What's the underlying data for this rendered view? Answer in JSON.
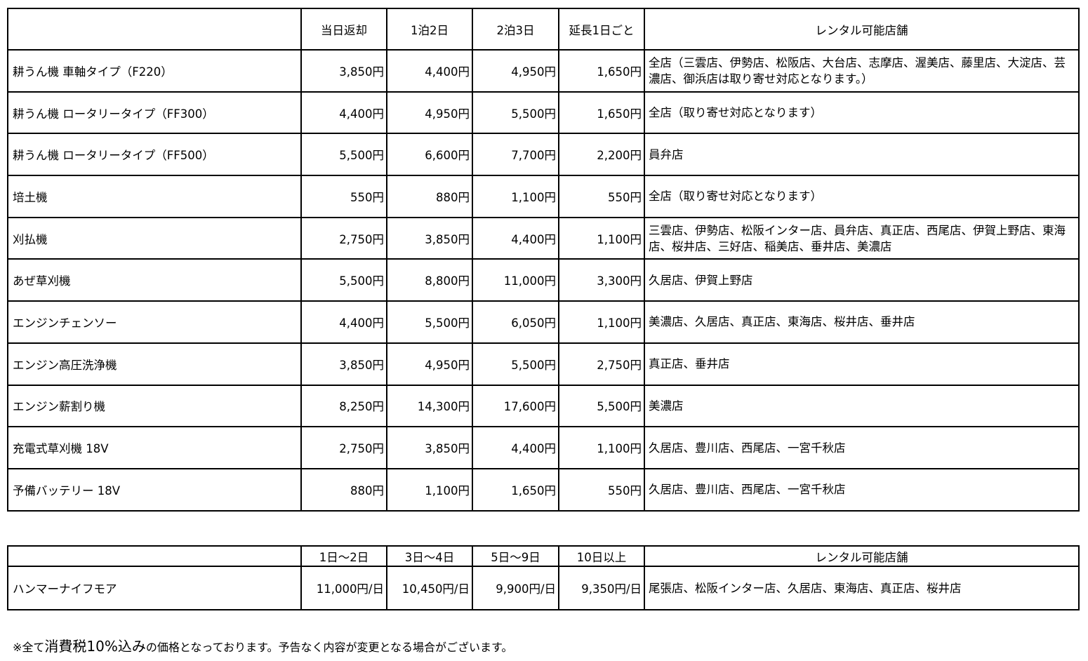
{
  "table1": {
    "headers": [
      "",
      "当日返却",
      "1泊2日",
      "2泊3日",
      "延長1日ごと",
      "レンタル可能店舗"
    ],
    "rows": [
      {
        "name": "耕うん機 車軸タイプ（F220）",
        "p1": "3,850円",
        "p2": "4,400円",
        "p3": "4,950円",
        "p4": "1,650円",
        "stores": "全店（三雲店、伊勢店、松阪店、大台店、志摩店、渥美店、藤里店、大淀店、芸濃店、御浜店は取り寄せ対応となります。）"
      },
      {
        "name": "耕うん機 ロータリータイプ（FF300）",
        "p1": "4,400円",
        "p2": "4,950円",
        "p3": "5,500円",
        "p4": "1,650円",
        "stores": "全店（取り寄せ対応となります）"
      },
      {
        "name": "耕うん機 ロータリータイプ（FF500）",
        "p1": "5,500円",
        "p2": "6,600円",
        "p3": "7,700円",
        "p4": "2,200円",
        "stores": "員弁店"
      },
      {
        "name": "培土機",
        "p1": "550円",
        "p2": "880円",
        "p3": "1,100円",
        "p4": "550円",
        "stores": "全店（取り寄せ対応となります）"
      },
      {
        "name": "刈払機",
        "p1": "2,750円",
        "p2": "3,850円",
        "p3": "4,400円",
        "p4": "1,100円",
        "stores": "三雲店、伊勢店、松阪インター店、員弁店、真正店、西尾店、伊賀上野店、東海店、桜井店、三好店、稲美店、垂井店、美濃店"
      },
      {
        "name": "あぜ草刈機",
        "p1": "5,500円",
        "p2": "8,800円",
        "p3": "11,000円",
        "p4": "3,300円",
        "stores": "久居店、伊賀上野店"
      },
      {
        "name": "エンジンチェンソー",
        "p1": "4,400円",
        "p2": "5,500円",
        "p3": "6,050円",
        "p4": "1,100円",
        "stores": "美濃店、久居店、真正店、東海店、桜井店、垂井店"
      },
      {
        "name": "エンジン高圧洗浄機",
        "p1": "3,850円",
        "p2": "4,950円",
        "p3": "5,500円",
        "p4": "2,750円",
        "stores": "真正店、垂井店"
      },
      {
        "name": "エンジン薪割り機",
        "p1": "8,250円",
        "p2": "14,300円",
        "p3": "17,600円",
        "p4": "5,500円",
        "stores": "美濃店"
      },
      {
        "name": "充電式草刈機 18V",
        "p1": "2,750円",
        "p2": "3,850円",
        "p3": "4,400円",
        "p4": "1,100円",
        "stores": "久居店、豊川店、西尾店、一宮千秋店"
      },
      {
        "name": "予備バッテリー 18V",
        "p1": "880円",
        "p2": "1,100円",
        "p3": "1,650円",
        "p4": "550円",
        "stores": "久居店、豊川店、西尾店、一宮千秋店"
      }
    ]
  },
  "table2": {
    "headers": [
      "",
      "1日〜2日",
      "3日〜4日",
      "5日〜9日",
      "10日以上",
      "レンタル可能店舗"
    ],
    "rows": [
      {
        "name": "ハンマーナイフモア",
        "p1": "11,000円/日",
        "p2": "10,450円/日",
        "p3": "9,900円/日",
        "p4": "9,350円/日",
        "stores": "尾張店、松阪インター店、久居店、東海店、真正店、桜井店"
      }
    ]
  },
  "note": {
    "prefix": "※全て",
    "emphasis": "消費税10%込み",
    "suffix": "の価格となっております。予告なく内容が変更となる場合がございます。"
  }
}
